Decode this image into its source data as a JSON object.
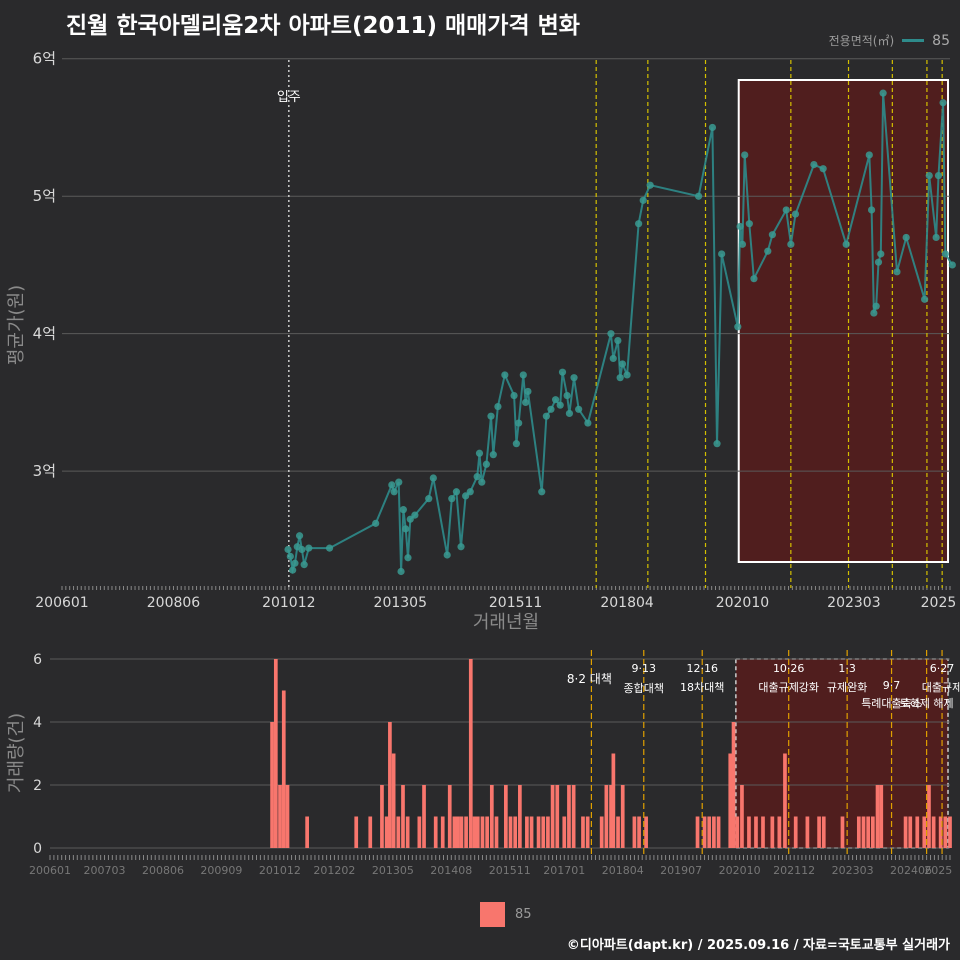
{
  "title": "진월 한국아델리움2차 아파트(2011) 매매가격 변화",
  "legend": {
    "label": "전용면적(㎡)",
    "value": "85",
    "bar_label": "85"
  },
  "footer": "©디아파트(dapt.kr) / 2025.09.16 / 자료=국토교통부 실거래가",
  "colors": {
    "line": "#2e8b8b",
    "bar": "#f8766d",
    "highlight_fill": "#5a1c1c",
    "policy_line": "#d4c000"
  },
  "chart_data": [
    {
      "type": "line",
      "title": "진월 한국아델리움2차 아파트(2011) 매매가격 변화",
      "xlabel": "거래년월",
      "ylabel": "평균가(원)",
      "x_range": [
        2006.0,
        2025.25
      ],
      "ylim": [
        2.15,
        6.1
      ],
      "x_ticks": [
        {
          "x": 2006.0,
          "label": "200601"
        },
        {
          "x": 2008.4167,
          "label": "200806"
        },
        {
          "x": 2010.9167,
          "label": "201012"
        },
        {
          "x": 2013.3333,
          "label": "201305"
        },
        {
          "x": 2015.8333,
          "label": "201511"
        },
        {
          "x": 2018.25,
          "label": "201804"
        },
        {
          "x": 2020.75,
          "label": "202010"
        },
        {
          "x": 2023.1667,
          "label": "202303"
        },
        {
          "x": 2025.0,
          "label": "2025"
        }
      ],
      "y_ticks": [
        {
          "y": 3,
          "label": "3억"
        },
        {
          "y": 4,
          "label": "4억"
        },
        {
          "y": 5,
          "label": "5억"
        },
        {
          "y": 6,
          "label": "6억"
        }
      ],
      "annotation": {
        "x": 2010.9167,
        "label": "입주"
      },
      "highlight_range": [
        2020.67,
        2025.25
      ],
      "policy_lines": [
        2017.58,
        2018.7,
        2019.95,
        2021.8,
        2023.05,
        2024.0,
        2024.75,
        2025.08
      ],
      "series": [
        {
          "name": "85",
          "points": [
            [
              2010.9,
              2.43
            ],
            [
              2010.95,
              2.38
            ],
            [
              2011.0,
              2.28
            ],
            [
              2011.05,
              2.33
            ],
            [
              2011.1,
              2.45
            ],
            [
              2011.15,
              2.53
            ],
            [
              2011.2,
              2.43
            ],
            [
              2011.25,
              2.32
            ],
            [
              2011.35,
              2.44
            ],
            [
              2011.8,
              2.44
            ],
            [
              2012.8,
              2.62
            ],
            [
              2013.15,
              2.9
            ],
            [
              2013.2,
              2.85
            ],
            [
              2013.3,
              2.92
            ],
            [
              2013.35,
              2.27
            ],
            [
              2013.4,
              2.72
            ],
            [
              2013.45,
              2.58
            ],
            [
              2013.5,
              2.37
            ],
            [
              2013.55,
              2.65
            ],
            [
              2013.65,
              2.68
            ],
            [
              2013.95,
              2.8
            ],
            [
              2014.05,
              2.95
            ],
            [
              2014.35,
              2.39
            ],
            [
              2014.45,
              2.8
            ],
            [
              2014.55,
              2.85
            ],
            [
              2014.65,
              2.45
            ],
            [
              2014.75,
              2.82
            ],
            [
              2014.85,
              2.85
            ],
            [
              2015.0,
              2.96
            ],
            [
              2015.05,
              3.13
            ],
            [
              2015.1,
              2.92
            ],
            [
              2015.2,
              3.05
            ],
            [
              2015.3,
              3.4
            ],
            [
              2015.35,
              3.12
            ],
            [
              2015.45,
              3.47
            ],
            [
              2015.6,
              3.7
            ],
            [
              2015.8,
              3.55
            ],
            [
              2015.85,
              3.2
            ],
            [
              2015.9,
              3.35
            ],
            [
              2016.0,
              3.7
            ],
            [
              2016.05,
              3.5
            ],
            [
              2016.1,
              3.58
            ],
            [
              2016.4,
              2.85
            ],
            [
              2016.5,
              3.4
            ],
            [
              2016.6,
              3.45
            ],
            [
              2016.7,
              3.52
            ],
            [
              2016.8,
              3.48
            ],
            [
              2016.85,
              3.72
            ],
            [
              2016.95,
              3.55
            ],
            [
              2017.0,
              3.42
            ],
            [
              2017.1,
              3.68
            ],
            [
              2017.2,
              3.45
            ],
            [
              2017.4,
              3.35
            ],
            [
              2017.9,
              4.0
            ],
            [
              2017.95,
              3.82
            ],
            [
              2018.05,
              3.95
            ],
            [
              2018.1,
              3.68
            ],
            [
              2018.15,
              3.78
            ],
            [
              2018.25,
              3.7
            ],
            [
              2018.5,
              4.8
            ],
            [
              2018.6,
              4.97
            ],
            [
              2018.75,
              5.08
            ],
            [
              2019.8,
              5.0
            ],
            [
              2020.1,
              5.5
            ],
            [
              2020.2,
              3.2
            ],
            [
              2020.3,
              4.58
            ],
            [
              2020.65,
              4.05
            ],
            [
              2020.7,
              4.78
            ],
            [
              2020.75,
              4.65
            ],
            [
              2020.8,
              5.3
            ],
            [
              2020.9,
              4.8
            ],
            [
              2021.0,
              4.4
            ],
            [
              2021.3,
              4.6
            ],
            [
              2021.4,
              4.72
            ],
            [
              2021.7,
              4.9
            ],
            [
              2021.8,
              4.65
            ],
            [
              2021.9,
              4.87
            ],
            [
              2022.3,
              5.23
            ],
            [
              2022.5,
              5.2
            ],
            [
              2023.0,
              4.65
            ],
            [
              2023.5,
              5.3
            ],
            [
              2023.55,
              4.9
            ],
            [
              2023.6,
              4.15
            ],
            [
              2023.65,
              4.2
            ],
            [
              2023.7,
              4.52
            ],
            [
              2023.75,
              4.58
            ],
            [
              2023.8,
              5.75
            ],
            [
              2024.1,
              4.45
            ],
            [
              2024.3,
              4.7
            ],
            [
              2024.7,
              4.25
            ],
            [
              2024.8,
              5.15
            ],
            [
              2024.95,
              4.7
            ],
            [
              2025.0,
              5.15
            ],
            [
              2025.1,
              5.68
            ],
            [
              2025.15,
              4.58
            ],
            [
              2025.3,
              4.5
            ]
          ]
        }
      ]
    },
    {
      "type": "bar",
      "xlabel": "",
      "ylabel": "거래량(건)",
      "x_range": [
        2006.0,
        2025.25
      ],
      "ylim": [
        0,
        6
      ],
      "y_ticks": [
        0,
        2,
        4,
        6
      ],
      "x_ticks": [
        {
          "x": 2006.0,
          "label": "200601"
        },
        {
          "x": 2007.1667,
          "label": "200703"
        },
        {
          "x": 2008.4167,
          "label": "200806"
        },
        {
          "x": 2009.6667,
          "label": "200909"
        },
        {
          "x": 2010.9167,
          "label": "201012"
        },
        {
          "x": 2012.0833,
          "label": "201202"
        },
        {
          "x": 2013.3333,
          "label": "201305"
        },
        {
          "x": 2014.5833,
          "label": "201408"
        },
        {
          "x": 2015.8333,
          "label": "201511"
        },
        {
          "x": 2017.0,
          "label": "201701"
        },
        {
          "x": 2018.25,
          "label": "201804"
        },
        {
          "x": 2019.5,
          "label": "201907"
        },
        {
          "x": 2020.75,
          "label": "202010"
        },
        {
          "x": 2021.9167,
          "label": "202112"
        },
        {
          "x": 2023.1667,
          "label": "202303"
        },
        {
          "x": 2024.4167,
          "label": "202406"
        },
        {
          "x": 2025.0,
          "label": "2025"
        }
      ],
      "policy_annotations": [
        {
          "x": 2017.58,
          "lines": [
            "8·2 대책"
          ]
        },
        {
          "x": 2018.7,
          "lines": [
            "9·13",
            "종합대책"
          ]
        },
        {
          "x": 2019.95,
          "lines": [
            "12·16",
            "18차대책"
          ]
        },
        {
          "x": 2021.8,
          "lines": [
            "10·26",
            "대출규제강화"
          ]
        },
        {
          "x": 2023.05,
          "lines": [
            "1·3",
            "규제완화"
          ]
        },
        {
          "x": 2024.0,
          "lines": [
            "9·7",
            "특례대출축소"
          ]
        },
        {
          "x": 2024.75,
          "lines": [
            "",
            "토허제 해제"
          ]
        },
        {
          "x": 2025.08,
          "lines": [
            "6·27",
            "대출규제"
          ]
        }
      ],
      "highlight_range": [
        2020.67,
        2025.25
      ],
      "series": [
        {
          "name": "85",
          "points": [
            [
              2010.75,
              4
            ],
            [
              2010.83,
              6
            ],
            [
              2010.92,
              2
            ],
            [
              2011.0,
              5
            ],
            [
              2011.08,
              2
            ],
            [
              2011.5,
              1
            ],
            [
              2012.55,
              1
            ],
            [
              2012.85,
              1
            ],
            [
              2013.1,
              2
            ],
            [
              2013.2,
              1
            ],
            [
              2013.27,
              4
            ],
            [
              2013.35,
              3
            ],
            [
              2013.45,
              1
            ],
            [
              2013.55,
              2
            ],
            [
              2013.65,
              1
            ],
            [
              2013.9,
              1
            ],
            [
              2014.0,
              2
            ],
            [
              2014.25,
              1
            ],
            [
              2014.4,
              1
            ],
            [
              2014.55,
              2
            ],
            [
              2014.65,
              1
            ],
            [
              2014.72,
              1
            ],
            [
              2014.8,
              1
            ],
            [
              2014.9,
              1
            ],
            [
              2015.0,
              6
            ],
            [
              2015.08,
              1
            ],
            [
              2015.15,
              1
            ],
            [
              2015.25,
              1
            ],
            [
              2015.35,
              1
            ],
            [
              2015.45,
              2
            ],
            [
              2015.55,
              1
            ],
            [
              2015.75,
              2
            ],
            [
              2015.85,
              1
            ],
            [
              2015.95,
              1
            ],
            [
              2016.05,
              2
            ],
            [
              2016.2,
              1
            ],
            [
              2016.3,
              1
            ],
            [
              2016.45,
              1
            ],
            [
              2016.55,
              1
            ],
            [
              2016.65,
              1
            ],
            [
              2016.75,
              2
            ],
            [
              2016.85,
              2
            ],
            [
              2017.0,
              1
            ],
            [
              2017.1,
              2
            ],
            [
              2017.2,
              2
            ],
            [
              2017.4,
              1
            ],
            [
              2017.5,
              1
            ],
            [
              2017.8,
              1
            ],
            [
              2017.9,
              2
            ],
            [
              2018.0,
              2
            ],
            [
              2018.05,
              3
            ],
            [
              2018.15,
              1
            ],
            [
              2018.25,
              2
            ],
            [
              2018.5,
              1
            ],
            [
              2018.6,
              1
            ],
            [
              2018.75,
              1
            ],
            [
              2019.85,
              1
            ],
            [
              2020.0,
              1
            ],
            [
              2020.1,
              1
            ],
            [
              2020.2,
              1
            ],
            [
              2020.3,
              1
            ],
            [
              2020.55,
              3
            ],
            [
              2020.62,
              4
            ],
            [
              2020.7,
              1
            ],
            [
              2020.8,
              2
            ],
            [
              2020.95,
              1
            ],
            [
              2021.1,
              1
            ],
            [
              2021.25,
              1
            ],
            [
              2021.45,
              1
            ],
            [
              2021.6,
              1
            ],
            [
              2021.72,
              3
            ],
            [
              2021.95,
              1
            ],
            [
              2022.2,
              1
            ],
            [
              2022.45,
              1
            ],
            [
              2022.55,
              1
            ],
            [
              2022.95,
              1
            ],
            [
              2023.3,
              1
            ],
            [
              2023.4,
              1
            ],
            [
              2023.5,
              1
            ],
            [
              2023.6,
              1
            ],
            [
              2023.7,
              2
            ],
            [
              2023.78,
              2
            ],
            [
              2024.3,
              1
            ],
            [
              2024.4,
              1
            ],
            [
              2024.55,
              1
            ],
            [
              2024.7,
              1
            ],
            [
              2024.8,
              2
            ],
            [
              2024.9,
              1
            ],
            [
              2025.05,
              1
            ],
            [
              2025.15,
              1
            ],
            [
              2025.25,
              1
            ]
          ]
        }
      ]
    }
  ]
}
